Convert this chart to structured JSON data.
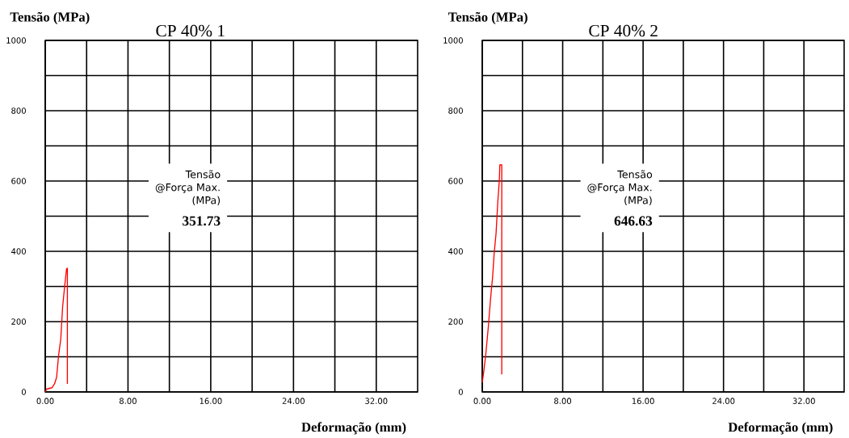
{
  "chart_data": [
    {
      "type": "line",
      "title": "CP 40% 1",
      "xlabel": "Deformação (mm)",
      "ylabel": "Tensão (MPa)",
      "annotations": [
        "Tensão",
        "@Força Max.",
        "(MPa)",
        "351.73"
      ],
      "x": [
        0,
        0.13,
        0.65,
        0.9,
        1.1,
        1.29,
        1.5,
        1.68,
        1.86,
        2.06,
        2.14,
        2.14
      ],
      "values": [
        0,
        8,
        12,
        23,
        42,
        104,
        150,
        242,
        296,
        350,
        352,
        23
      ],
      "color": "#ff0000",
      "xlim": [
        0,
        36
      ],
      "ylim": [
        0,
        1000
      ],
      "xticks": [
        {
          "value": 0,
          "label": "0.00"
        },
        {
          "value": 4,
          "label": null
        },
        {
          "value": 8,
          "label": "8.00"
        },
        {
          "value": 12,
          "label": null
        },
        {
          "value": 16,
          "label": "16.00"
        },
        {
          "value": 20,
          "label": null
        },
        {
          "value": 24,
          "label": "24.00"
        },
        {
          "value": 28,
          "label": null
        },
        {
          "value": 32,
          "label": "32.00"
        }
      ],
      "yticks": [
        0,
        {
          "value": 100,
          "label": null
        },
        200,
        {
          "value": 300,
          "label": null
        },
        400,
        {
          "value": 500,
          "label": null
        },
        600,
        {
          "value": 700,
          "label": null
        },
        800,
        {
          "value": 900,
          "label": null
        },
        1000
      ],
      "grid": true
    },
    {
      "type": "line",
      "title": "CP 40% 2",
      "xlabel": "Deformação (mm)",
      "ylabel": "Tensão (MPa)",
      "annotations": [
        "Tensão",
        "@Força Max.",
        "(MPa)",
        "646.63"
      ],
      "x": [
        0,
        0.15,
        0.34,
        0.59,
        0.85,
        1.03,
        1.19,
        1.37,
        1.55,
        1.7,
        1.75,
        1.94,
        1.94
      ],
      "values": [
        27,
        58,
        104,
        181,
        273,
        327,
        396,
        450,
        542,
        604,
        646,
        646,
        50
      ],
      "color": "#ff0000",
      "xlim": [
        0,
        36
      ],
      "ylim": [
        0,
        1000
      ],
      "xticks": [
        {
          "value": 0,
          "label": "0.00"
        },
        {
          "value": 4,
          "label": null
        },
        {
          "value": 8,
          "label": "8.00"
        },
        {
          "value": 12,
          "label": null
        },
        {
          "value": 16,
          "label": "16.00"
        },
        {
          "value": 20,
          "label": null
        },
        {
          "value": 24,
          "label": "24.00"
        },
        {
          "value": 28,
          "label": null
        },
        {
          "value": 32,
          "label": "32.00"
        }
      ],
      "yticks": [
        0,
        {
          "value": 100,
          "label": null
        },
        200,
        {
          "value": 300,
          "label": null
        },
        400,
        {
          "value": 500,
          "label": null
        },
        600,
        {
          "value": 700,
          "label": null
        },
        800,
        {
          "value": 900,
          "label": null
        },
        1000
      ],
      "grid": true
    }
  ]
}
